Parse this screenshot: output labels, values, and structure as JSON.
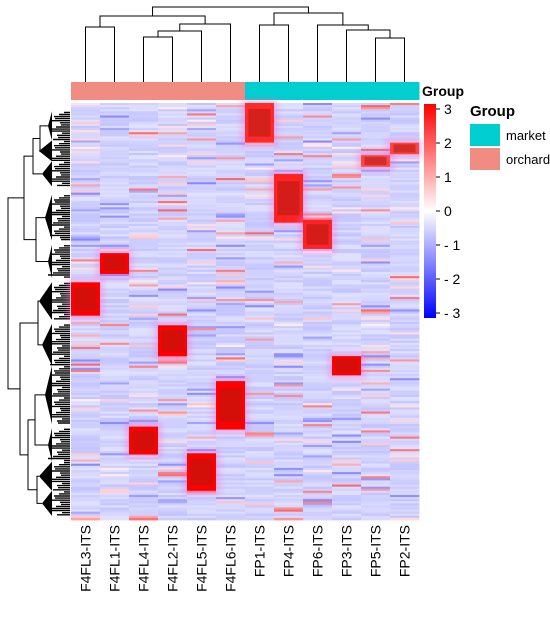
{
  "chart_data": {
    "type": "heatmap",
    "columns": [
      "F4FL3-ITS",
      "F4FL1-ITS",
      "F4FL4-ITS",
      "F4FL2-ITS",
      "F4FL5-ITS",
      "F4FL6-ITS",
      "FP1-ITS",
      "FP4-ITS",
      "FP6-ITS",
      "FP3-ITS",
      "FP5-ITS",
      "FP2-ITS"
    ],
    "column_groups": [
      "orchard",
      "orchard",
      "orchard",
      "orchard",
      "orchard",
      "orchard",
      "market",
      "market",
      "market",
      "market",
      "market",
      "market"
    ],
    "annotation_title": "Group",
    "group_legend": {
      "title": "Group",
      "items": [
        {
          "label": "market",
          "color": "#00CED1"
        },
        {
          "label": "orchard",
          "color": "#F08C82"
        }
      ]
    },
    "color_scale": {
      "min": -3,
      "max": 3,
      "ticks": [
        "3",
        "2",
        "1",
        "0",
        "- 1",
        "- 2",
        "- 3"
      ],
      "tick_values": [
        3,
        2,
        1,
        0,
        -1,
        -2,
        -3
      ],
      "colors": {
        "low": "#0000FF",
        "mid": "#FFFFFF",
        "high": "#FF0000"
      }
    },
    "n_rows_approx": 200,
    "high_blocks": [
      {
        "column": "F4FL3-ITS",
        "row_start": 0.43,
        "row_end": 0.51,
        "value": 3
      },
      {
        "column": "F4FL1-ITS",
        "row_start": 0.36,
        "row_end": 0.41,
        "value": 3
      },
      {
        "column": "F4FL4-ITS",
        "row_start": 0.776,
        "row_end": 0.843,
        "value": 3
      },
      {
        "column": "F4FL2-ITS",
        "row_start": 0.533,
        "row_end": 0.607,
        "value": 3
      },
      {
        "column": "F4FL5-ITS",
        "row_start": 0.84,
        "row_end": 0.93,
        "value": 3
      },
      {
        "column": "F4FL6-ITS",
        "row_start": 0.667,
        "row_end": 0.783,
        "value": 3
      },
      {
        "column": "FP1-ITS",
        "row_start": 0.0,
        "row_end": 0.095,
        "value": 2.5
      },
      {
        "column": "FP4-ITS",
        "row_start": 0.17,
        "row_end": 0.287,
        "value": 2.6
      },
      {
        "column": "FP6-ITS",
        "row_start": 0.28,
        "row_end": 0.35,
        "value": 2.6
      },
      {
        "column": "FP3-ITS",
        "row_start": 0.607,
        "row_end": 0.653,
        "value": 3
      },
      {
        "column": "FP5-ITS",
        "row_start": 0.125,
        "row_end": 0.153,
        "value": 2.2
      },
      {
        "column": "FP2-ITS",
        "row_start": 0.095,
        "row_end": 0.123,
        "value": 2.2
      }
    ]
  }
}
